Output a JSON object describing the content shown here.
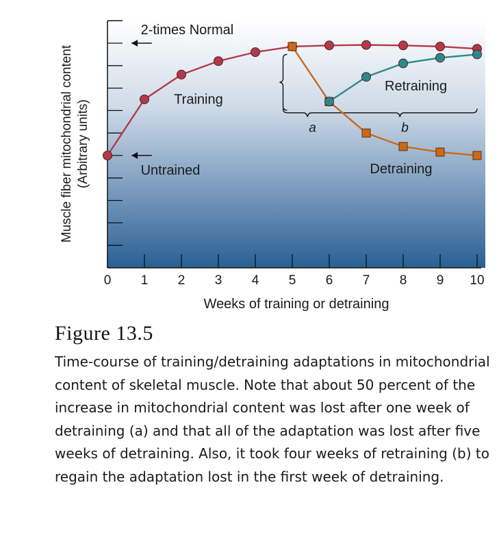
{
  "figure": {
    "title": "Figure 13.5",
    "caption": "Time-course of training/detraining adaptations in mitochondrial content of skeletal muscle. Note that about 50 percent of the increase in mitochondrial content was lost after one week of detraining (a) and that all of the adaptation was lost after five weeks of detraining. Also, it took four weeks of retraining (b) to regain the adaptation lost in the first week of detraining."
  },
  "chart_data": {
    "type": "line",
    "title": "",
    "xlabel": "Weeks of training or detraining",
    "ylabel": "Muscle fiber mitochondrial content",
    "ylabel_sub": "(Arbitrary units)",
    "xlim": [
      0,
      10
    ],
    "ylim": [
      0,
      11
    ],
    "x_ticks": [
      0,
      1,
      2,
      3,
      4,
      5,
      6,
      7,
      8,
      9,
      10
    ],
    "grid": false,
    "legend": "none",
    "series": [
      {
        "name": "Training",
        "color": "#b03a4a",
        "marker": "circle",
        "x": [
          0,
          1,
          2,
          3,
          4,
          5,
          6,
          7,
          8,
          9,
          10
        ],
        "y": [
          5.0,
          7.5,
          8.6,
          9.2,
          9.6,
          9.85,
          9.9,
          9.92,
          9.9,
          9.85,
          9.75
        ]
      },
      {
        "name": "Detraining",
        "color": "#c86a1a",
        "marker": "square",
        "x": [
          5,
          6,
          7,
          8,
          9,
          10
        ],
        "y": [
          9.85,
          7.4,
          6.0,
          5.4,
          5.15,
          5.0
        ]
      },
      {
        "name": "Retraining",
        "color": "#2a8a8a",
        "marker": "circle",
        "x": [
          6,
          7,
          8,
          9,
          10
        ],
        "y": [
          7.4,
          8.5,
          9.1,
          9.35,
          9.5
        ]
      }
    ],
    "annotations": [
      {
        "text": "2-times Normal"
      },
      {
        "text": "Untrained"
      },
      {
        "text": "a"
      },
      {
        "text": "b"
      }
    ]
  }
}
